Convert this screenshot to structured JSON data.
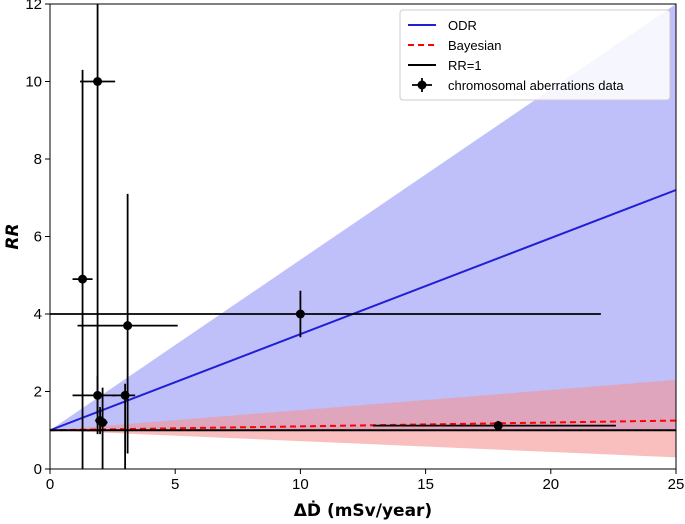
{
  "chart_data": {
    "type": "scatter",
    "title": "",
    "xlabel": "ΔḊ (mSv/year)",
    "ylabel": "RR",
    "xlim": [
      0,
      25
    ],
    "ylim": [
      0,
      12
    ],
    "xticks": [
      0,
      5,
      10,
      15,
      20,
      25
    ],
    "yticks": [
      0,
      2,
      4,
      6,
      8,
      10,
      12
    ],
    "grid": false,
    "legend_position": "top-right",
    "legend": [
      {
        "label": "ODR",
        "style": "solid",
        "color": "#1f1fd6",
        "marker": "line"
      },
      {
        "label": "Bayesian",
        "style": "dashed",
        "color": "#ff0000",
        "marker": "line"
      },
      {
        "label": "RR=1",
        "style": "solid",
        "color": "#000000",
        "marker": "line"
      },
      {
        "label": "chromosomal aberrations data",
        "style": "errorbar",
        "color": "#000000",
        "marker": "point"
      }
    ],
    "bands": [
      {
        "name": "ODR uncertainty",
        "color": "#8a8af5",
        "opacity": 0.55,
        "x": [
          0,
          25
        ],
        "lower": [
          1,
          1
        ],
        "upper": [
          1,
          12.3
        ]
      },
      {
        "name": "Bayesian uncertainty",
        "color": "#f59595",
        "opacity": 0.6,
        "x": [
          0,
          25
        ],
        "lower": [
          1,
          0.3
        ],
        "upper": [
          1,
          2.3
        ]
      }
    ],
    "series": [
      {
        "name": "ODR",
        "kind": "line",
        "color": "#1f1fd6",
        "dash": "",
        "x": [
          0,
          25
        ],
        "y": [
          1,
          7.2
        ]
      },
      {
        "name": "Bayesian",
        "kind": "line",
        "color": "#ff0000",
        "dash": "6,4",
        "x": [
          0,
          25
        ],
        "y": [
          1,
          1.25
        ]
      },
      {
        "name": "RR=1",
        "kind": "line",
        "color": "#000000",
        "dash": "",
        "x": [
          0,
          25
        ],
        "y": [
          1,
          1
        ]
      }
    ],
    "points": [
      {
        "x": 1.3,
        "y": 4.9,
        "xerr": [
          0.4,
          0.4
        ],
        "yerr": [
          4.9,
          5.4
        ]
      },
      {
        "x": 1.9,
        "y": 10.0,
        "xerr": [
          0.7,
          0.7
        ],
        "yerr": [
          8.6,
          2.0
        ]
      },
      {
        "x": 1.9,
        "y": 1.9,
        "xerr": [
          1.0,
          0.7
        ],
        "yerr": [
          1.0,
          0.5
        ]
      },
      {
        "x": 2.0,
        "y": 1.25,
        "xerr": [
          0.2,
          0.2
        ],
        "yerr": [
          0.35,
          0.35
        ]
      },
      {
        "x": 2.1,
        "y": 1.2,
        "xerr": [
          0.2,
          0.2
        ],
        "yerr": [
          1.2,
          0.9
        ]
      },
      {
        "x": 3.0,
        "y": 1.9,
        "xerr": [
          0.5,
          0.4
        ],
        "yerr": [
          1.9,
          0.3
        ]
      },
      {
        "x": 3.1,
        "y": 3.7,
        "xerr": [
          2.0,
          2.0
        ],
        "yerr": [
          3.3,
          3.4
        ]
      },
      {
        "x": 10.0,
        "y": 4.0,
        "xerr": [
          10.0,
          12.0
        ],
        "yerr": [
          0.6,
          0.6
        ]
      },
      {
        "x": 17.9,
        "y": 1.12,
        "xerr": [
          5.0,
          4.7
        ],
        "yerr": [
          0.12,
          0.12
        ]
      }
    ]
  }
}
